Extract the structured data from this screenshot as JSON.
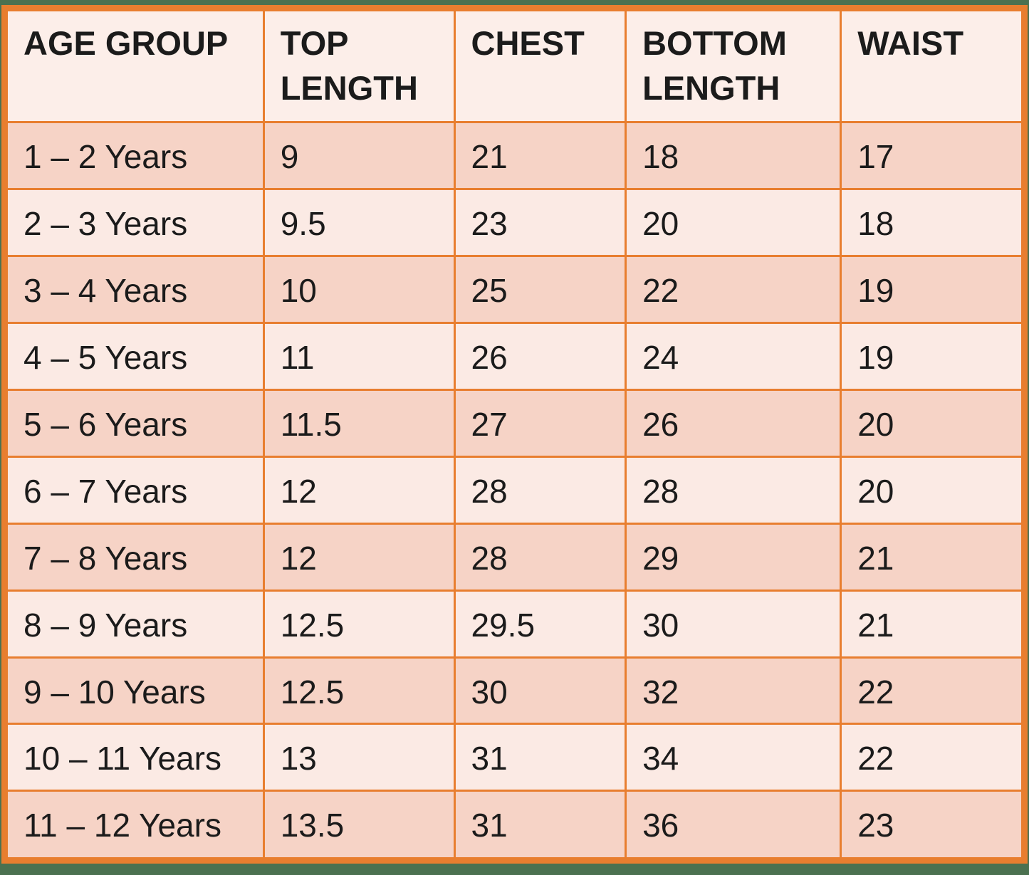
{
  "colors": {
    "background": "#4b7150",
    "border": "#e87e2f",
    "band-dark": "#f6d3c6",
    "band-light": "#fbeae4",
    "header-bg": "#fceee9",
    "text": "#1b1b1b"
  },
  "chart_data": {
    "type": "table",
    "columns": [
      "AGE GROUP",
      "TOP LENGTH",
      "CHEST",
      "BOTTOM LENGTH",
      "WAIST"
    ],
    "rows": [
      [
        "1 – 2 Years",
        "9",
        "21",
        "18",
        "17"
      ],
      [
        "2 – 3 Years",
        "9.5",
        "23",
        "20",
        "18"
      ],
      [
        "3 – 4 Years",
        "10",
        "25",
        "22",
        "19"
      ],
      [
        "4 – 5 Years",
        "11",
        "26",
        "24",
        "19"
      ],
      [
        "5 – 6 Years",
        "11.5",
        "27",
        "26",
        "20"
      ],
      [
        "6 – 7 Years",
        "12",
        "28",
        "28",
        "20"
      ],
      [
        "7 – 8 Years",
        "12",
        "28",
        "29",
        "21"
      ],
      [
        "8 – 9 Years",
        "12.5",
        "29.5",
        "30",
        "21"
      ],
      [
        "9 – 10 Years",
        "12.5",
        "30",
        "32",
        "22"
      ],
      [
        "10 – 11 Years",
        "13",
        "31",
        "34",
        "22"
      ],
      [
        "11 – 12 Years",
        "13.5",
        "31",
        "36",
        "23"
      ]
    ]
  }
}
